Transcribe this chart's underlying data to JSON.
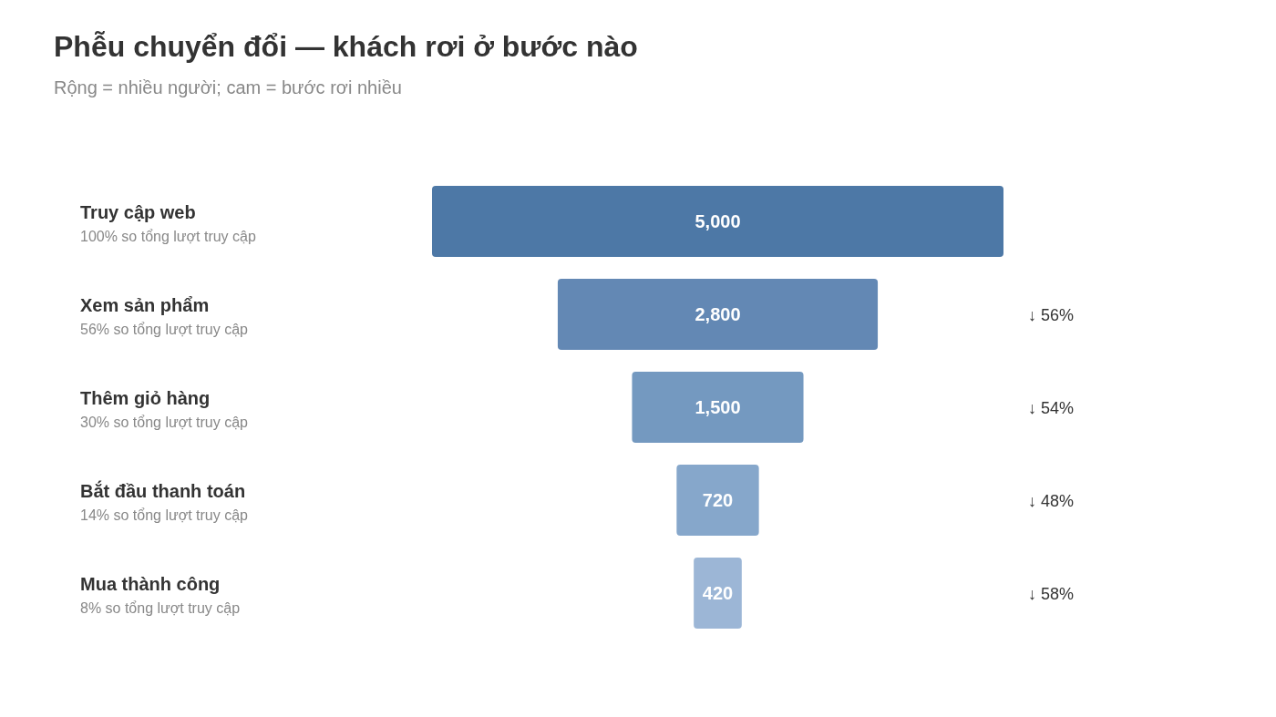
{
  "chart_data": {
    "type": "other",
    "title": "Phễu chuyển đổi — khách rơi ở bước nào",
    "subtitle": "Rộng = nhiều người; cam = bước rơi nhiều",
    "categories": [
      "Truy cập web",
      "Xem sản phẩm",
      "Thêm giỏ hàng",
      "Bắt đầu thanh toán",
      "Mua thành công"
    ],
    "values": [
      5000,
      2800,
      1500,
      720,
      420
    ],
    "colors": [
      "#4d78a6",
      "#6388b4",
      "#7499c0",
      "#86a7cb",
      "#9cb6d6"
    ],
    "value_labels": [
      "5,000",
      "2,800",
      "1,500",
      "720",
      "420"
    ],
    "annotations": [
      {
        "text": "100% so tổng lượt truy cập",
        "y": "Truy cập web"
      },
      {
        "text": "56% so tổng lượt truy cập",
        "y": "Xem sản phẩm"
      },
      {
        "text": "30% so tổng lượt truy cập",
        "y": "Thêm giỏ hàng"
      },
      {
        "text": "14% so tổng lượt truy cập",
        "y": "Bắt đầu thanh toán"
      },
      {
        "text": "8% so tổng lượt truy cập",
        "y": "Mua thành công"
      },
      {
        "text": "↓ 56%",
        "y": "Xem sản phẩm"
      },
      {
        "text": "↓ 54%",
        "y": "Thêm giỏ hàng"
      },
      {
        "text": "↓ 48%",
        "y": "Bắt đầu thanh toán"
      },
      {
        "text": "↓ 58%",
        "y": "Mua thành công"
      }
    ]
  }
}
